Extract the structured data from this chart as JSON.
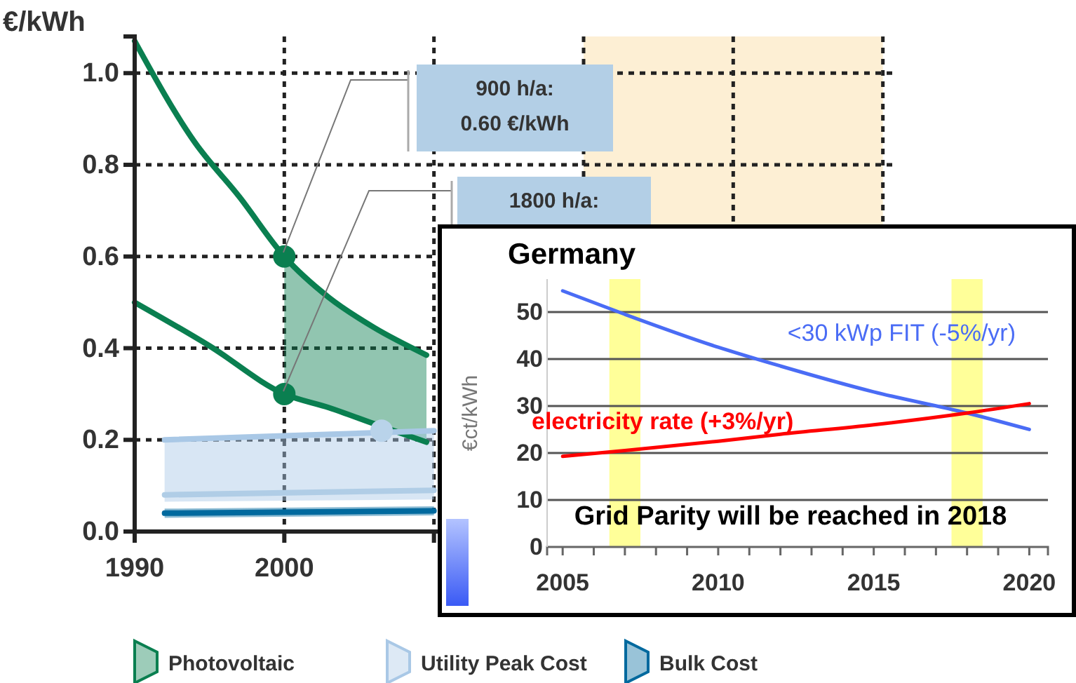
{
  "chart_data": [
    {
      "type": "line",
      "ylabel": "€/kWh",
      "xlim": [
        1990,
        2041
      ],
      "ylim": [
        0,
        1.08
      ],
      "xticks": [
        1990,
        2000,
        {
          "value": 2010,
          "label": null
        },
        {
          "value": 2020,
          "label": null
        },
        {
          "value": 2030,
          "label": null
        },
        {
          "value": 2040,
          "label": null
        }
      ],
      "yticks": [
        {
          "value": 0,
          "label": "0.0"
        },
        {
          "value": 0.2,
          "label": "0.2"
        },
        {
          "value": 0.4,
          "label": "0.4"
        },
        {
          "value": 0.6,
          "label": "0.6"
        },
        {
          "value": 0.8,
          "label": "0.8"
        },
        {
          "value": 1,
          "label": "1.0"
        }
      ],
      "grid": true,
      "legend": "bottom",
      "bands": [
        {
          "axis": "x",
          "from": 2020,
          "to": 2040,
          "color": "#fdefd4"
        }
      ],
      "series": [
        {
          "name": "Photovoltaic",
          "color": "#0a7f50",
          "x": [
            1990,
            1994,
            1997,
            2000,
            2003,
            2006,
            2009.5
          ],
          "values": [
            1.07,
            0.85,
            0.73,
            0.6,
            0.51,
            0.445,
            0.385
          ],
          "lower": [
            null,
            null,
            null,
            0.3,
            0.27,
            0.235,
            0.195
          ],
          "upper": [
            null,
            null,
            null,
            0.6,
            0.51,
            0.445,
            0.385
          ]
        },
        {
          "color": "#0a7f50",
          "x": [
            1990,
            1995,
            2000,
            2003,
            2006,
            2009.5
          ],
          "values": [
            0.5,
            0.405,
            0.3,
            0.27,
            0.235,
            0.195
          ]
        },
        {
          "name": "Utility Peak Cost",
          "color": "#a9c8e6",
          "x": [
            1992,
            2010
          ],
          "values": [
            0.2,
            0.22
          ],
          "lower": [
            0.065,
            0.07
          ],
          "upper": [
            0.2,
            0.22
          ]
        },
        {
          "color": "#b0cde6",
          "x": [
            1992,
            2010
          ],
          "values": [
            0.08,
            0.09
          ]
        },
        {
          "name": "Bulk Cost",
          "color": "#00699e",
          "x": [
            1992,
            2010
          ],
          "values": [
            0.04,
            0.045
          ],
          "lower": [
            0.03,
            0.035
          ],
          "upper": [
            0.05,
            0.055
          ]
        },
        {
          "type": "scatter",
          "color": "#0a7f50",
          "x": [
            2000,
            2000
          ],
          "values": [
            0.6,
            0.3
          ]
        },
        {
          "type": "scatter",
          "color": "#b9d3ea",
          "x": [
            2006.5
          ],
          "values": [
            0.22
          ]
        }
      ],
      "annotations": [
        "900 h/a:\n0.60 €/kWh",
        "1800 h/a:"
      ]
    },
    {
      "type": "line",
      "title": "Germany",
      "ylabel": "€ct/kWh",
      "xlim": [
        2004.5,
        2020.6
      ],
      "ylim": [
        0,
        57
      ],
      "xticks": [
        2005,
        {
          "value": 2006,
          "label": null
        },
        {
          "value": 2007,
          "label": null
        },
        {
          "value": 2008,
          "label": null
        },
        {
          "value": 2009,
          "label": null
        },
        2010,
        {
          "value": 2011,
          "label": null
        },
        {
          "value": 2012,
          "label": null
        },
        {
          "value": 2013,
          "label": null
        },
        {
          "value": 2014,
          "label": null
        },
        2015,
        {
          "value": 2016,
          "label": null
        },
        {
          "value": 2017,
          "label": null
        },
        {
          "value": 2018,
          "label": null
        },
        {
          "value": 2019,
          "label": null
        },
        2020
      ],
      "yticks": [
        0,
        10,
        20,
        30,
        40,
        50
      ],
      "grid": "y",
      "legend": false,
      "marker": "none",
      "bands": [
        {
          "axis": "x",
          "from": 2006.5,
          "to": 2007.5,
          "color": "#ffff99"
        },
        {
          "axis": "x",
          "from": 2017.5,
          "to": 2018.5,
          "color": "#ffff99"
        }
      ],
      "series": [
        {
          "name": "<30 kWp FIT (-5%/yr)",
          "color": "#4a6cf5",
          "x": [
            2005,
            2007,
            2010,
            2012,
            2015,
            2018,
            2020
          ],
          "values": [
            54.5,
            49.5,
            42.5,
            38.5,
            33,
            28.5,
            25
          ]
        },
        {
          "name": "electricity rate (+3%/yr)",
          "color": "#ff0000",
          "x": [
            2005,
            2007,
            2010,
            2012,
            2015,
            2018,
            2020
          ],
          "values": [
            19.3,
            20.5,
            22.5,
            24,
            26,
            28.5,
            30.5
          ]
        }
      ],
      "annotations": [
        "Grid Parity will be reached in 2018"
      ]
    }
  ]
}
